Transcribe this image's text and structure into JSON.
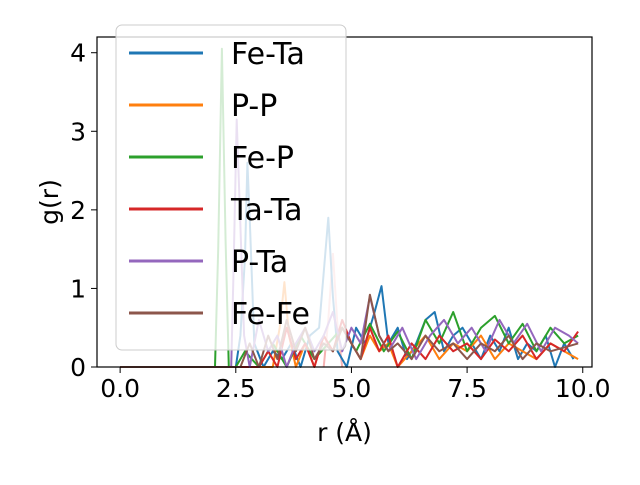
{
  "chart_data": {
    "type": "line",
    "xlabel": "r (Å)",
    "ylabel": "g(r)",
    "xlim": [
      -0.5,
      10.2
    ],
    "ylim": [
      0,
      4.2
    ],
    "xticks": [
      {
        "value": 0.0,
        "label": "0.0"
      },
      {
        "value": 2.5,
        "label": "2.5"
      },
      {
        "value": 5.0,
        "label": "5.0"
      },
      {
        "value": 7.5,
        "label": "7.5"
      },
      {
        "value": 10.0,
        "label": "10.0"
      }
    ],
    "yticks": [
      {
        "value": 0,
        "label": "0"
      },
      {
        "value": 1,
        "label": "1"
      },
      {
        "value": 2,
        "label": "2"
      },
      {
        "value": 3,
        "label": "3"
      },
      {
        "value": 4,
        "label": "4"
      }
    ],
    "grid": false,
    "legend_position": "top-left",
    "series": [
      {
        "name": "Fe-Ta",
        "color": "#1f77b4",
        "x": [
          0.0,
          2.5,
          2.6,
          2.7,
          2.75,
          2.8,
          2.9,
          3.1,
          3.3,
          3.5,
          3.7,
          3.9,
          4.1,
          4.3,
          4.5,
          4.6,
          4.7,
          4.9,
          5.1,
          5.3,
          5.5,
          5.65,
          5.8,
          6.0,
          6.2,
          6.4,
          6.6,
          6.8,
          7.0,
          7.2,
          7.4,
          7.6,
          7.8,
          8.0,
          8.2,
          8.4,
          8.6,
          8.8,
          9.0,
          9.2,
          9.4,
          9.6,
          9.8
        ],
        "y": [
          0.0,
          0.0,
          0.4,
          1.4,
          2.6,
          1.9,
          0.3,
          0.0,
          0.2,
          0.1,
          0.3,
          0.0,
          0.4,
          0.5,
          1.9,
          0.9,
          0.2,
          0.0,
          0.5,
          0.3,
          0.7,
          1.03,
          0.3,
          0.5,
          0.1,
          0.3,
          0.6,
          0.7,
          0.2,
          0.4,
          0.5,
          0.3,
          0.1,
          0.4,
          0.2,
          0.5,
          0.1,
          0.3,
          0.2,
          0.4,
          0.0,
          0.3,
          0.1
        ]
      },
      {
        "name": "P-P",
        "color": "#ff7f0e",
        "x": [
          0.0,
          3.3,
          3.45,
          3.55,
          3.65,
          3.8,
          4.0,
          4.2,
          4.4,
          4.6,
          4.8,
          5.0,
          5.2,
          5.4,
          5.6,
          5.8,
          6.0,
          6.3,
          6.6,
          6.9,
          7.2,
          7.5,
          7.8,
          8.1,
          8.4,
          8.7,
          9.0,
          9.3,
          9.6,
          9.9
        ],
        "y": [
          0.0,
          0.0,
          0.5,
          1.08,
          0.4,
          0.0,
          0.3,
          0.0,
          0.4,
          0.2,
          0.5,
          0.3,
          0.1,
          0.4,
          0.2,
          0.3,
          0.0,
          0.2,
          0.4,
          0.1,
          0.3,
          0.2,
          0.4,
          0.1,
          0.3,
          0.2,
          0.1,
          0.3,
          0.2,
          0.1
        ]
      },
      {
        "name": "Fe-P",
        "color": "#2ca02c",
        "x": [
          0.0,
          2.05,
          2.12,
          2.2,
          2.28,
          2.35,
          2.5,
          2.7,
          3.0,
          3.3,
          3.6,
          3.9,
          4.2,
          4.5,
          4.8,
          5.1,
          5.4,
          5.7,
          6.0,
          6.3,
          6.6,
          6.9,
          7.2,
          7.5,
          7.8,
          8.1,
          8.4,
          8.7,
          9.0,
          9.3,
          9.6,
          9.9
        ],
        "y": [
          0.0,
          0.0,
          1.5,
          4.05,
          1.6,
          0.0,
          0.0,
          0.2,
          0.0,
          0.3,
          0.0,
          0.4,
          0.1,
          0.3,
          0.5,
          0.2,
          0.55,
          0.2,
          0.45,
          0.1,
          0.6,
          0.3,
          0.7,
          0.2,
          0.5,
          0.65,
          0.3,
          0.55,
          0.2,
          0.5,
          0.3,
          0.4
        ]
      },
      {
        "name": "Ta-Ta",
        "color": "#d62728",
        "x": [
          0.0,
          3.0,
          3.2,
          3.4,
          3.6,
          3.8,
          4.0,
          4.2,
          4.4,
          4.6,
          4.8,
          5.0,
          5.2,
          5.4,
          5.6,
          5.8,
          6.0,
          6.3,
          6.6,
          6.9,
          7.2,
          7.5,
          7.8,
          8.1,
          8.4,
          8.7,
          9.0,
          9.3,
          9.6,
          9.9
        ],
        "y": [
          0.0,
          0.0,
          0.2,
          0.0,
          0.5,
          0.1,
          0.3,
          0.0,
          0.4,
          0.2,
          0.6,
          0.3,
          0.1,
          0.5,
          0.2,
          0.4,
          0.0,
          0.3,
          0.1,
          0.4,
          0.2,
          0.3,
          0.1,
          0.35,
          0.2,
          0.4,
          0.1,
          0.3,
          0.2,
          0.45
        ]
      },
      {
        "name": "P-Ta",
        "color": "#9467bd",
        "x": [
          0.0,
          2.4,
          2.45,
          2.52,
          2.6,
          2.68,
          2.8,
          3.0,
          3.2,
          3.4,
          3.6,
          3.8,
          4.0,
          4.2,
          4.4,
          4.6,
          4.8,
          5.0,
          5.2,
          5.4,
          5.6,
          5.8,
          6.1,
          6.4,
          6.7,
          7.0,
          7.3,
          7.6,
          7.9,
          8.2,
          8.5,
          8.8,
          9.1,
          9.4,
          9.7,
          9.9
        ],
        "y": [
          0.0,
          0.0,
          1.2,
          3.15,
          1.8,
          0.4,
          0.0,
          0.6,
          0.2,
          0.4,
          0.0,
          0.3,
          0.5,
          0.2,
          0.4,
          0.7,
          0.2,
          0.5,
          0.3,
          0.9,
          0.4,
          0.2,
          0.5,
          0.1,
          0.4,
          0.6,
          0.3,
          0.5,
          0.2,
          0.6,
          0.3,
          0.55,
          0.2,
          0.5,
          0.4,
          0.3
        ]
      },
      {
        "name": "Fe-Fe",
        "color": "#8c564b",
        "x": [
          0.0,
          2.6,
          2.8,
          3.0,
          3.2,
          3.4,
          3.6,
          3.8,
          4.0,
          4.2,
          4.4,
          4.6,
          4.8,
          5.0,
          5.2,
          5.4,
          5.6,
          5.8,
          6.0,
          6.3,
          6.6,
          6.9,
          7.2,
          7.5,
          7.8,
          8.1,
          8.4,
          8.7,
          9.0,
          9.3,
          9.6,
          9.9
        ],
        "y": [
          0.0,
          0.0,
          0.3,
          0.0,
          0.4,
          0.1,
          0.6,
          0.2,
          0.5,
          0.1,
          0.3,
          0.2,
          0.5,
          0.3,
          0.1,
          0.92,
          0.4,
          0.2,
          0.3,
          0.1,
          0.4,
          0.2,
          0.3,
          0.1,
          0.3,
          0.2,
          0.4,
          0.1,
          0.3,
          0.2,
          0.25,
          0.3
        ]
      }
    ],
    "background_faint_peaks": {
      "color": "#f08080",
      "x": [
        4.4,
        4.5,
        4.6,
        4.7,
        4.8
      ],
      "y": [
        0.0,
        0.6,
        1.45,
        0.5,
        0.0
      ]
    }
  }
}
